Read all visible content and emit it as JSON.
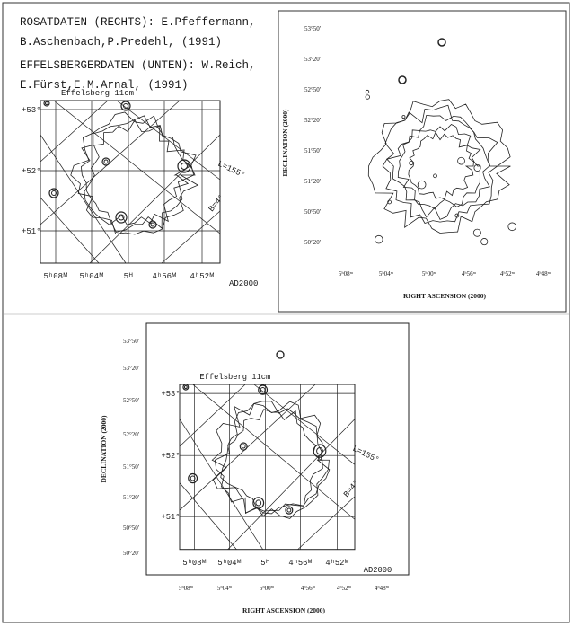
{
  "header": {
    "lines": [
      "ROSATDATEN (RECHTS): E.Pfeffermann,",
      "B.Aschenbach,P.Predehl, (1991)",
      "EFFELSBERGERDATEN (UNTEN): W.Reich,",
      "E.Fürst,E.M.Arnal, (1991)"
    ]
  },
  "left_map": {
    "title": "Effelsberg 11cm",
    "dec_labels": [
      "+53°",
      "+52°",
      "+51°"
    ],
    "ra_labels": [
      "5ʰ08ᴹ",
      "5ʰ04ᴹ",
      "5ᴴ",
      "4ʰ56ᴹ",
      "4ʰ52ᴹ"
    ],
    "epoch": "AD2000",
    "galactic_labels": [
      "L=155°",
      "B=4°"
    ]
  },
  "right_map": {
    "y_axis_label": "DECLINATION (2000)",
    "x_axis_label": "RIGHT ASCENSION (2000)",
    "dec_labels": [
      "53°50'",
      "53°20'",
      "52°50'",
      "52°20'",
      "51°50'",
      "51°20'",
      "50°50'",
      "50°20'"
    ],
    "ra_labels": [
      "5ʰ08ᵐ",
      "5ʰ04ᵐ",
      "5ʰ00ᵐ",
      "4ʰ56ᵐ",
      "4ʰ52ᵐ",
      "4ʰ48ᵐ"
    ]
  },
  "bottom_map": {
    "y_axis_label": "DECLINATION (2000)",
    "x_axis_label": "RIGHT ASCENSION (2000)",
    "dec_labels": [
      "53°50'",
      "53°20'",
      "52°50'",
      "52°20'",
      "51°50'",
      "51°20'",
      "50°50'",
      "50°20'"
    ],
    "ra_labels": [
      "5ʰ08ᵐ",
      "5ʰ04ᵐ",
      "5ʰ00ᵐ",
      "4ʰ56ᵐ",
      "4ʰ52ᵐ",
      "4ʰ48ᵐ"
    ],
    "inset": {
      "title": "Effelsberg 11cm",
      "dec_labels": [
        "+53°",
        "+52°",
        "+51°"
      ],
      "ra_labels": [
        "5ʰ08ᴹ",
        "5ʰ04ᴹ",
        "5ᴴ",
        "4ʰ56ᴹ",
        "4ʰ52ᴹ"
      ],
      "epoch": "AD2000",
      "galactic_labels": [
        "L=155°",
        "B=4°"
      ]
    }
  }
}
